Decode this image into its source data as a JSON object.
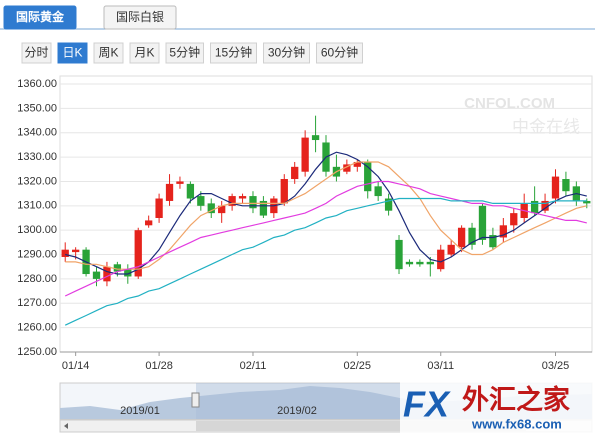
{
  "tabs": [
    {
      "label": "国际黄金",
      "active": true
    },
    {
      "label": "国际白银",
      "active": false
    }
  ],
  "periods": [
    {
      "label": "分时",
      "active": false
    },
    {
      "label": "日K",
      "active": true
    },
    {
      "label": "周K",
      "active": false
    },
    {
      "label": "月K",
      "active": false
    },
    {
      "label": "5分钟",
      "active": false
    },
    {
      "label": "15分钟",
      "active": false
    },
    {
      "label": "30分钟",
      "active": false
    },
    {
      "label": "60分钟",
      "active": false
    }
  ],
  "watermark": {
    "brand": "CNFOL.COM",
    "sub": "中金在线"
  },
  "logo": {
    "fx": "FX",
    "name": "外汇之家",
    "url": "www.fx68.com"
  },
  "navigator": {
    "labels": [
      "2019/01",
      "2019/02"
    ]
  },
  "chart_data": {
    "type": "candlestick",
    "categories": [
      null,
      "01/14",
      null,
      null,
      null,
      null,
      null,
      null,
      null,
      "01/28",
      null,
      null,
      null,
      null,
      null,
      null,
      null,
      null,
      "02/11",
      null,
      null,
      null,
      null,
      null,
      null,
      null,
      null,
      null,
      "02/25",
      null,
      null,
      null,
      null,
      null,
      null,
      null,
      "03/11",
      null,
      null,
      null,
      null,
      null,
      null,
      null,
      null,
      null,
      null,
      "03/25",
      null,
      null,
      null
    ],
    "open": [
      1289,
      1291,
      1292,
      1283,
      1279,
      1286,
      1284,
      1281,
      1302,
      1305,
      1312,
      1319,
      1319,
      1314,
      1311,
      1307,
      1310,
      1313,
      1314,
      1312,
      1307,
      1311,
      1321,
      1324,
      1339,
      1336,
      1326,
      1324,
      1326,
      1328,
      1318,
      1313,
      1296,
      1287,
      1287,
      1287,
      1284,
      1290,
      1293,
      1301,
      1310,
      1298,
      1297,
      1302,
      1305,
      1312,
      1308,
      1313,
      1321,
      1318,
      1312
    ],
    "high": [
      1295,
      1293,
      1293,
      1285,
      1287,
      1287,
      1286,
      1301,
      1306,
      1315,
      1323,
      1322,
      1320,
      1316,
      1313,
      1312,
      1315,
      1315,
      1316,
      1314,
      1314,
      1323,
      1328,
      1341,
      1347,
      1339,
      1331,
      1329,
      1329,
      1329,
      1320,
      1315,
      1298,
      1288,
      1288,
      1289,
      1294,
      1296,
      1302,
      1303,
      1311,
      1301,
      1305,
      1309,
      1315,
      1318,
      1315,
      1325,
      1324,
      1320,
      1313
    ],
    "low": [
      1287,
      1288,
      1281,
      1277,
      1277,
      1281,
      1278,
      1280,
      1301,
      1303,
      1310,
      1317,
      1311,
      1308,
      1305,
      1303,
      1308,
      1311,
      1307,
      1305,
      1305,
      1310,
      1319,
      1322,
      1332,
      1322,
      1320,
      1323,
      1324,
      1313,
      1312,
      1306,
      1282,
      1285,
      1285,
      1281,
      1283,
      1289,
      1291,
      1292,
      1294,
      1292,
      1295,
      1299,
      1303,
      1306,
      1307,
      1311,
      1314,
      1310,
      1309
    ],
    "close": [
      1292,
      1292,
      1282,
      1280,
      1285,
      1283,
      1281,
      1300,
      1304,
      1313,
      1319,
      1320,
      1313,
      1310,
      1307,
      1310,
      1314,
      1314,
      1309,
      1306,
      1313,
      1321,
      1326,
      1338,
      1337,
      1324,
      1322,
      1327,
      1328,
      1316,
      1314,
      1308,
      1284,
      1286,
      1286,
      1286,
      1292,
      1294,
      1301,
      1294,
      1296,
      1293,
      1302,
      1307,
      1311,
      1307,
      1312,
      1322,
      1316,
      1312,
      1311
    ],
    "up_color": "#e5231c",
    "down_color": "#29a338",
    "series": [
      {
        "color": "#1c2a7a",
        "values": [
          1290,
          1289,
          1287,
          1285,
          1283,
          1282,
          1282,
          1284,
          1287,
          1292,
          1299,
          1306,
          1312,
          1315,
          1315,
          1313,
          1311,
          1310,
          1310,
          1310,
          1310,
          1311,
          1314,
          1319,
          1325,
          1330,
          1332,
          1331,
          1329,
          1326,
          1322,
          1316,
          1308,
          1299,
          1292,
          1288,
          1287,
          1289,
          1292,
          1295,
          1297,
          1297,
          1298,
          1300,
          1303,
          1306,
          1309,
          1312,
          1314,
          1315,
          1314
        ]
      },
      {
        "color": "#f0a468",
        "values": [
          1287,
          1287,
          1286,
          1286,
          1285,
          1284,
          1284,
          1284,
          1285,
          1288,
          1292,
          1297,
          1302,
          1306,
          1308,
          1310,
          1311,
          1311,
          1311,
          1311,
          1311,
          1311,
          1313,
          1315,
          1318,
          1321,
          1324,
          1326,
          1328,
          1328,
          1328,
          1326,
          1322,
          1318,
          1313,
          1306,
          1300,
          1296,
          1292,
          1290,
          1290,
          1292,
          1295,
          1297,
          1299,
          1301,
          1303,
          1305,
          1307,
          1309,
          1310
        ]
      },
      {
        "color": "#e23ce0",
        "values": [
          1273,
          1275,
          1277,
          1279,
          1281,
          1283,
          1284,
          1285,
          1287,
          1289,
          1291,
          1293,
          1295,
          1297,
          1298,
          1299,
          1300,
          1301,
          1302,
          1303,
          1304,
          1305,
          1306,
          1307,
          1309,
          1311,
          1314,
          1316,
          1318,
          1319,
          1320,
          1320,
          1319,
          1318,
          1317,
          1315,
          1314,
          1313,
          1312,
          1311,
          1311,
          1310,
          1310,
          1309,
          1308,
          1307,
          1306,
          1305,
          1304,
          1304,
          1303
        ]
      },
      {
        "color": "#22b1c3",
        "values": [
          1261,
          1263,
          1265,
          1267,
          1269,
          1270,
          1272,
          1273,
          1275,
          1276,
          1278,
          1280,
          1282,
          1284,
          1286,
          1288,
          1290,
          1292,
          1293,
          1295,
          1297,
          1298,
          1300,
          1301,
          1303,
          1305,
          1306,
          1308,
          1309,
          1310,
          1311,
          1312,
          1313,
          1313,
          1313,
          1313,
          1313,
          1312,
          1312,
          1312,
          1312,
          1311,
          1311,
          1311,
          1311,
          1311,
          1311,
          1312,
          1312,
          1312,
          1312
        ]
      }
    ],
    "ylim": [
      1250,
      1360
    ],
    "yticks": [
      {
        "value": 1250,
        "label": "1250.00"
      },
      {
        "value": 1260,
        "label": "1260.00"
      },
      {
        "value": 1270,
        "label": "1270.00"
      },
      {
        "value": 1280,
        "label": "1280.00"
      },
      {
        "value": 1290,
        "label": "1290.00"
      },
      {
        "value": 1300,
        "label": "1300.00"
      },
      {
        "value": 1310,
        "label": "1310.00"
      },
      {
        "value": 1320,
        "label": "1320.00"
      },
      {
        "value": 1330,
        "label": "1330.00"
      },
      {
        "value": 1340,
        "label": "1340.00"
      },
      {
        "value": 1350,
        "label": "1350.00"
      },
      {
        "value": 1360,
        "label": "1360.00"
      }
    ],
    "grid": true
  }
}
